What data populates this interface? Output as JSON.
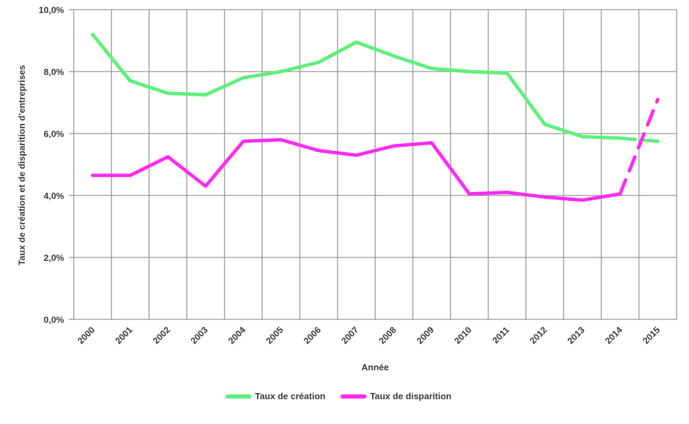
{
  "chart_data": {
    "type": "line",
    "title": "",
    "xlabel": "Année",
    "ylabel": "Taux de création et de disparition d'entreprises",
    "categories": [
      "2000",
      "2001",
      "2002",
      "2003",
      "2004",
      "2005",
      "2006",
      "2007",
      "2008",
      "2009",
      "2010",
      "2011",
      "2012",
      "2013",
      "2014",
      "2015"
    ],
    "y_ticks": [
      "0,0%",
      "2,0%",
      "4,0%",
      "6,0%",
      "8,0%",
      "10,0%"
    ],
    "ylim": [
      0,
      10
    ],
    "grid": true,
    "legend_position": "bottom",
    "dashed_last_segment": true,
    "series": [
      {
        "name": "Taux de création",
        "color": "#5ef07a",
        "values": [
          9.2,
          7.7,
          7.3,
          7.25,
          7.8,
          8.0,
          8.3,
          8.95,
          8.5,
          8.1,
          8.0,
          7.95,
          6.3,
          5.9,
          5.85,
          5.75
        ]
      },
      {
        "name": "Taux de disparition",
        "color": "#ff2bf0",
        "values": [
          4.65,
          4.65,
          5.25,
          4.3,
          5.75,
          5.8,
          5.45,
          5.3,
          5.6,
          5.7,
          4.05,
          4.1,
          3.95,
          3.85,
          4.05,
          7.1
        ]
      }
    ]
  }
}
